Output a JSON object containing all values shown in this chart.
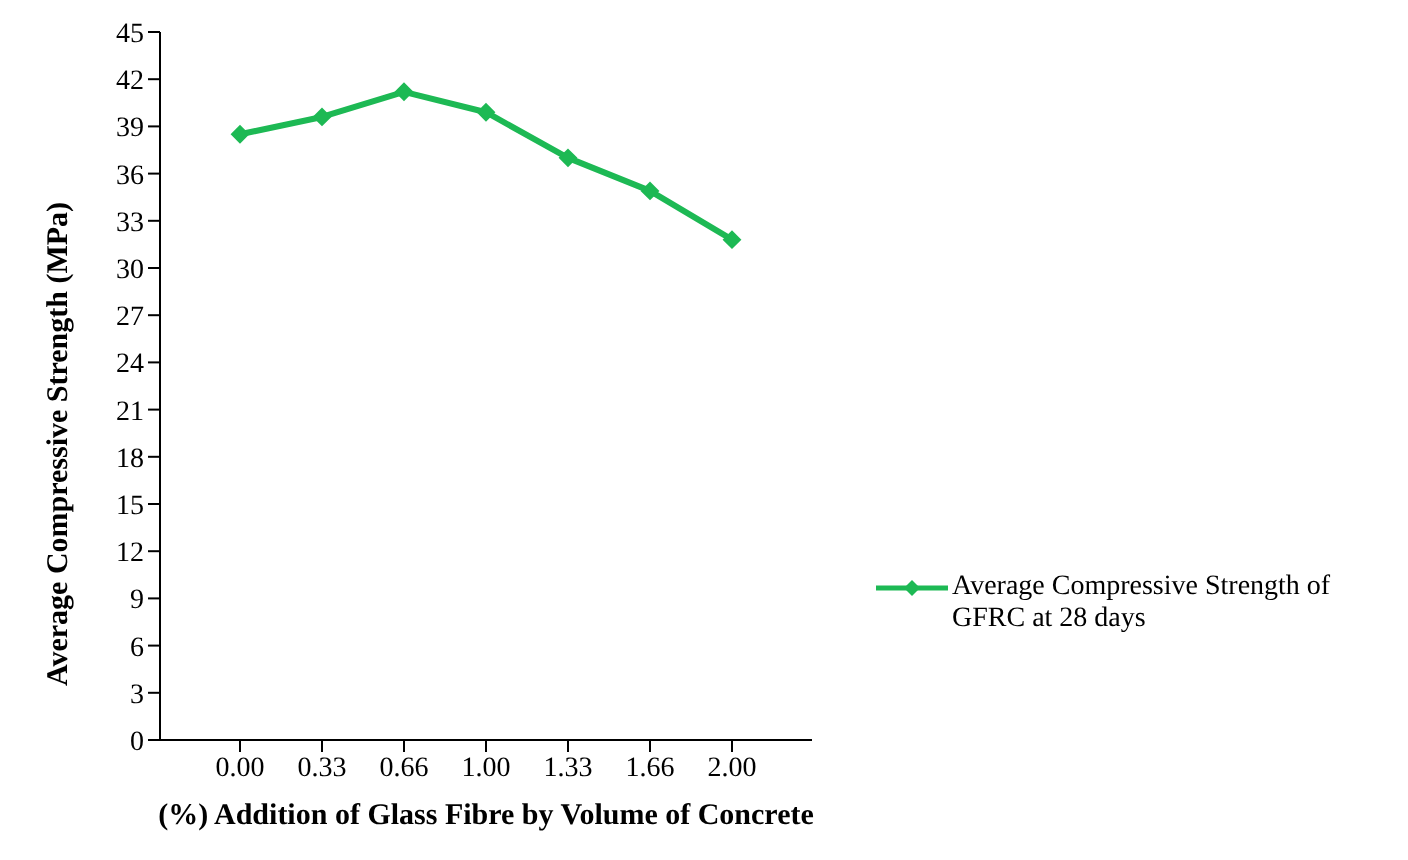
{
  "chart_data": {
    "type": "line",
    "xlabel": "(%) Addition  of Glass Fibre by Volume of Concrete",
    "ylabel": "Average  Compressive  Strength  (MPa)",
    "categories": [
      "0.00",
      "0.33",
      "0.66",
      "1.00",
      "1.33",
      "1.66",
      "2.00"
    ],
    "series": [
      {
        "name": "Average Compressive Strength of GFRC at 28 days",
        "color": "#1db954",
        "values": [
          38.5,
          39.6,
          41.2,
          39.9,
          37.0,
          34.9,
          31.8
        ]
      }
    ],
    "ylim": [
      0,
      45
    ],
    "yticks": [
      0,
      3,
      6,
      9,
      12,
      15,
      18,
      21,
      24,
      27,
      30,
      33,
      36,
      39,
      42,
      45
    ],
    "grid": false,
    "legend": "bottom right",
    "marker": "diamond",
    "line_style": "solid"
  }
}
